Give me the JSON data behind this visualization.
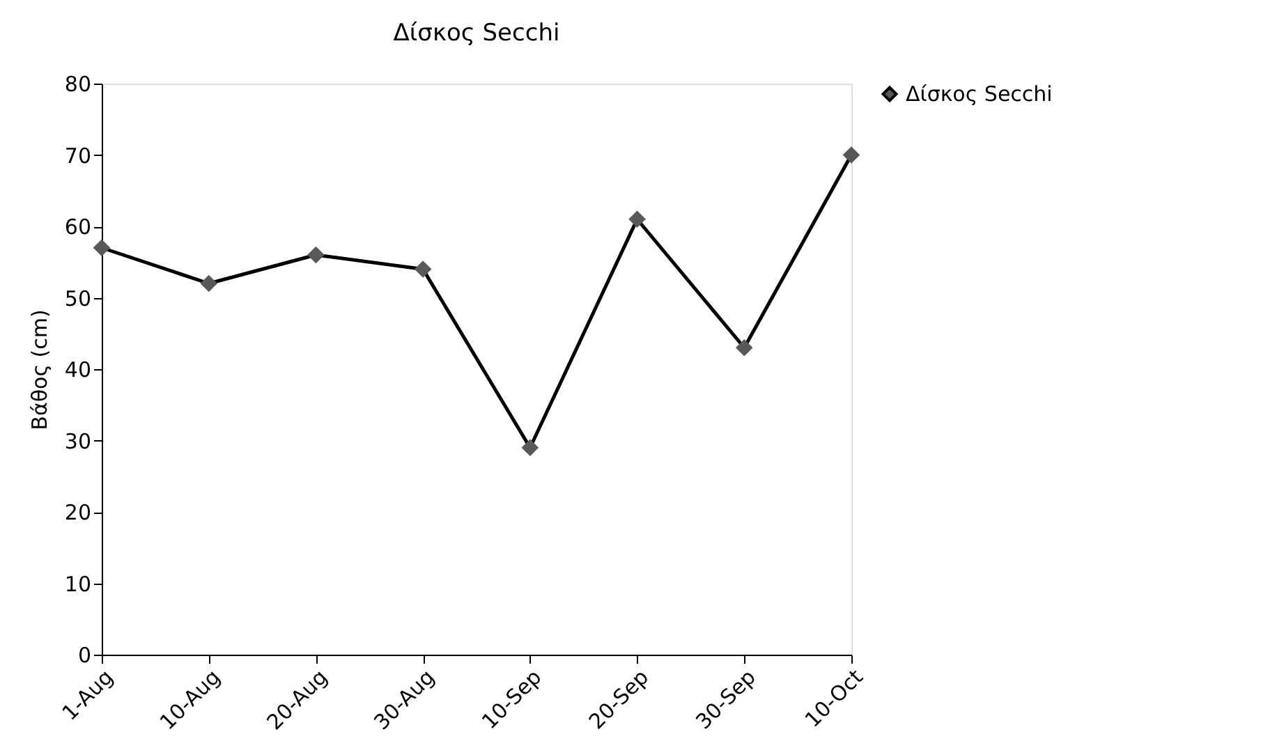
{
  "chart_data": {
    "type": "line",
    "title": "Δίσκος Secchi",
    "ylabel": "Βάθος (cm)",
    "categories": [
      "1-Aug",
      "10-Aug",
      "20-Aug",
      "30-Aug",
      "10-Sep",
      "20-Sep",
      "30-Sep",
      "10-Oct"
    ],
    "series": [
      {
        "name": "Δίσκος Secchi",
        "color": "#000000",
        "values": [
          57,
          52,
          56,
          54,
          29,
          61,
          43,
          70
        ]
      }
    ],
    "ylim": [
      0,
      80
    ],
    "yticks": [
      0,
      10,
      20,
      30,
      40,
      50,
      60,
      70,
      80
    ],
    "grid": false,
    "legend": "right",
    "marker": "diamond",
    "line_style": "solid"
  }
}
